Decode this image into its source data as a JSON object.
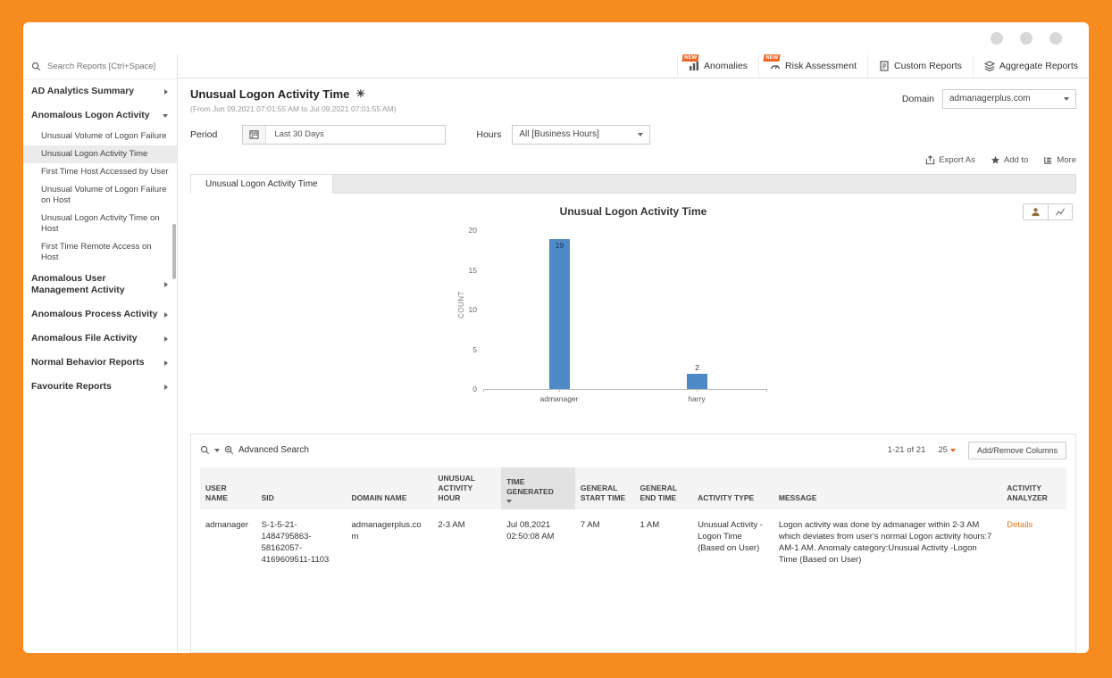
{
  "sidebar": {
    "search_placeholder": "Search Reports [Ctrl+Space]",
    "sections": [
      {
        "label": "AD Analytics Summary",
        "expanded": false
      },
      {
        "label": "Anomalous Logon Activity",
        "expanded": true,
        "children": [
          "Unusual Volume of Logon Failure",
          "Unusual Logon Activity Time",
          "First Time Host Accessed by User",
          "Unusual Volume of Logon Failure on Host",
          "Unusual Logon Activity Time on Host",
          "First Time Remote Access on Host"
        ],
        "selected_child": "Unusual Logon Activity Time"
      },
      {
        "label": "Anomalous User Management Activity",
        "expanded": false
      },
      {
        "label": "Anomalous Process Activity",
        "expanded": false
      },
      {
        "label": "Anomalous File Activity",
        "expanded": false
      },
      {
        "label": "Normal Behavior Reports",
        "expanded": false
      },
      {
        "label": "Favourite Reports",
        "expanded": false
      }
    ]
  },
  "topbar": {
    "tabs": [
      {
        "label": "Anomalies",
        "badge": "NEW"
      },
      {
        "label": "Risk Assessment",
        "badge": "NEW"
      },
      {
        "label": "Custom Reports",
        "badge": ""
      },
      {
        "label": "Aggregate Reports",
        "badge": ""
      }
    ]
  },
  "header": {
    "title": "Unusual Logon Activity Time",
    "subtitle": "(From Jun 09,2021 07:01:55 AM to Jul 09,2021 07:01:55 AM)",
    "domain_label": "Domain",
    "domain_value": "admanagerplus.com"
  },
  "filters": {
    "period_label": "Period",
    "period_value": "Last 30 Days",
    "hours_label": "Hours",
    "hours_value": "All [Business Hours]"
  },
  "actions": {
    "export": "Export As",
    "add": "Add to",
    "more": "More"
  },
  "report_tab": "Unusual Logon Activity Time",
  "chart_data": {
    "type": "bar",
    "title": "Unusual Logon Activity Time",
    "categories": [
      "admanager",
      "harry"
    ],
    "values": [
      19,
      2
    ],
    "xlabel": "",
    "ylabel": "COUNT",
    "yticks": [
      0,
      5,
      10,
      15,
      20
    ],
    "ylim": [
      0,
      20
    ],
    "bar_color": "#4e8bc6",
    "legend": "none",
    "grid": false
  },
  "table": {
    "toolbar": {
      "advanced_search": "Advanced Search",
      "pagination": "1-21 of 21",
      "page_size": "25",
      "columns_button": "Add/Remove Columns"
    },
    "headers": [
      "USER NAME",
      "SID",
      "DOMAIN NAME",
      "UNUSUAL ACTIVITY HOUR",
      "TIME GENERATED",
      "GENERAL START TIME",
      "GENERAL END TIME",
      "ACTIVITY TYPE",
      "MESSAGE",
      "ACTIVITY ANALYZER"
    ],
    "sorted_column": "TIME GENERATED",
    "rows": [
      {
        "user_name": "admanager",
        "sid": "S-1-5-21-1484795863-58162057-4169609511-1103",
        "domain_name": "admanagerplus.com",
        "unusual_activity_hour": "2-3 AM",
        "time_generated": "Jul 08,2021 02:50:08 AM",
        "general_start_time": "7 AM",
        "general_end_time": "1 AM",
        "activity_type": "Unusual Activity - Logon Time (Based on User)",
        "message": "Logon activity was done by admanager within 2-3 AM which deviates from user's normal Logon activity hours:7 AM-1 AM. Anomaly category:Unusual Activity -Logon Time (Based on User)",
        "analyzer": "Details"
      }
    ]
  }
}
